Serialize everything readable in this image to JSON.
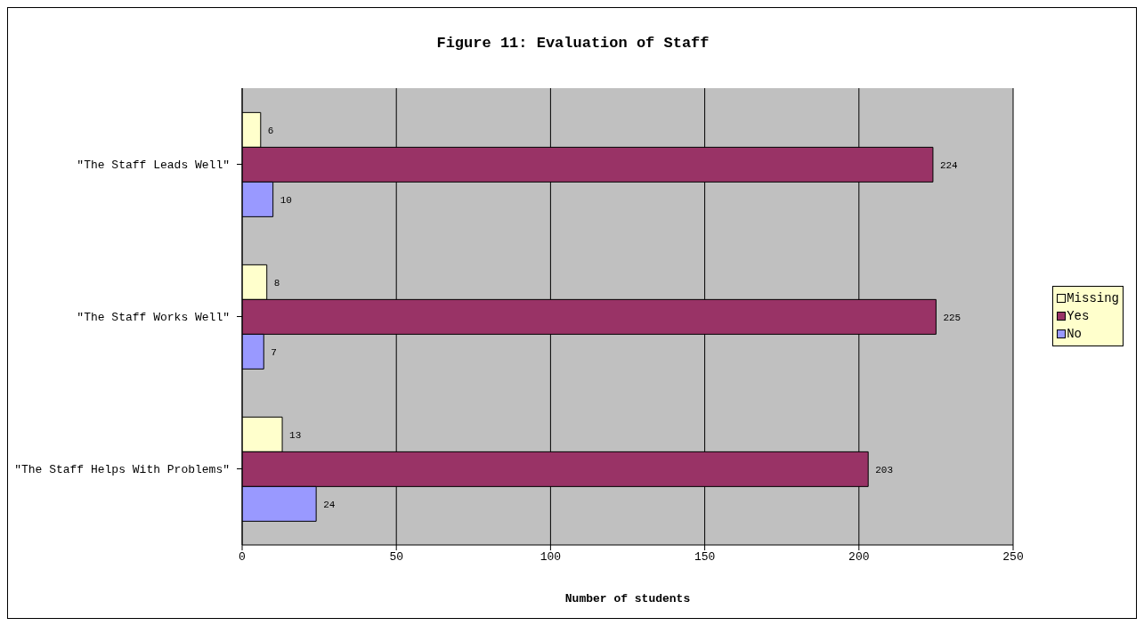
{
  "chart_data": {
    "type": "bar",
    "orientation": "horizontal",
    "title": "Figure 11: Evaluation of Staff",
    "xlabel": "Number of students",
    "categories": [
      "\"The Staff Leads Well\"",
      "\"The Staff Works Well\"",
      "\"The Staff Helps With Problems\""
    ],
    "series": [
      {
        "name": "Missing",
        "color": "#ffffcc",
        "values": [
          6,
          8,
          13
        ]
      },
      {
        "name": "Yes",
        "color": "#993366",
        "values": [
          224,
          225,
          203
        ]
      },
      {
        "name": "No",
        "color": "#9999ff",
        "values": [
          10,
          7,
          24
        ]
      }
    ],
    "xlim": [
      0,
      250
    ],
    "xticks": [
      0,
      50,
      100,
      150,
      200,
      250
    ],
    "grid": "x",
    "legend": "right",
    "data_labels": true
  }
}
